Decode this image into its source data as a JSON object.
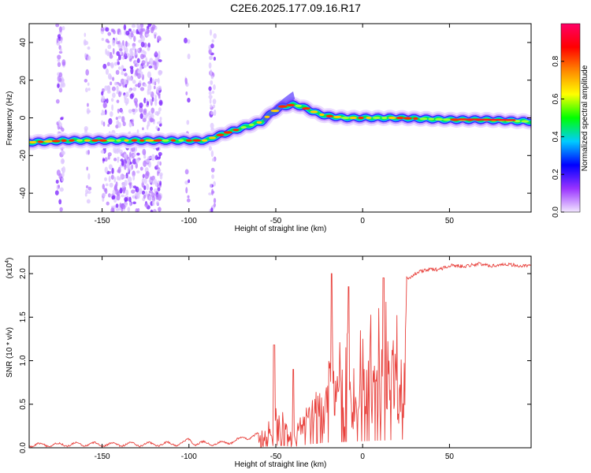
{
  "title": "C2E6.2025.177.09.16.R17",
  "chart_data": [
    {
      "type": "heatmap",
      "title": "",
      "xlabel": "Height of straight line (km)",
      "ylabel": "Frequency (Hz)",
      "xlim": [
        -192,
        97
      ],
      "ylim": [
        -50,
        50
      ],
      "x_ticks": [
        -150,
        -100,
        -50,
        0,
        50
      ],
      "x_tick_labels": [
        "-150",
        "-100",
        "-50",
        "0",
        "50"
      ],
      "y_ticks": [
        -40,
        -20,
        0,
        20,
        40
      ],
      "y_tick_labels": [
        "-40",
        "-20",
        "0",
        "20",
        "40"
      ],
      "ridge": {
        "x": [
          -192,
          -170,
          -150,
          -130,
          -115,
          -100,
          -90,
          -85,
          -75,
          -65,
          -58,
          -52,
          -46,
          -40,
          -35,
          -30,
          -25,
          -20,
          -10,
          0,
          20,
          50,
          70,
          97
        ],
        "y": [
          -13,
          -12,
          -12,
          -12,
          -12,
          -12,
          -12,
          -10,
          -7,
          -4,
          -2,
          3,
          6,
          7,
          6,
          4,
          2,
          1,
          0,
          0,
          0,
          -1,
          -1,
          -2
        ]
      },
      "colorbar": {
        "label": "Normalized spectral amplitude",
        "range": [
          0,
          1
        ],
        "ticks": [
          0,
          0.2,
          0.4,
          0.6,
          0.8
        ],
        "tick_labels": [
          "0.0",
          "0.2",
          "0.4",
          "0.6",
          "0.8"
        ],
        "colors": [
          "#f2e6ff",
          "#9933ff",
          "#0000ff",
          "#00ccff",
          "#00ff00",
          "#ffff00",
          "#ff8800",
          "#ff0000",
          "#ff0066"
        ]
      },
      "grid": false
    },
    {
      "type": "line",
      "title": "",
      "xlabel": "Height of straight line (km)",
      "ylabel": "SNR (10 * v/v)",
      "y_multiplier": "(x10",
      "y_multiplier_exp": "4",
      "y_multiplier_close": ")",
      "xlim": [
        -192,
        97
      ],
      "ylim": [
        0,
        2.2
      ],
      "x_ticks": [
        -150,
        -100,
        -50,
        0,
        50
      ],
      "x_tick_labels": [
        "-150",
        "-100",
        "-50",
        "0",
        "50"
      ],
      "y_ticks": [
        0,
        0.5,
        1.0,
        1.5,
        2.0
      ],
      "y_tick_labels": [
        "0.0",
        "0.5",
        "1.0",
        "1.5",
        "2.0"
      ],
      "color": "#e8413c",
      "grid": false,
      "envelope": {
        "x": [
          -192,
          -160,
          -140,
          -120,
          -100,
          -80,
          -60,
          -55,
          -50,
          -45,
          -42,
          -38,
          -35,
          -30,
          -25,
          -20,
          -15,
          -10,
          -5,
          0,
          10,
          20,
          25,
          30,
          40,
          50,
          60,
          70,
          80,
          90,
          97
        ],
        "y": [
          0.03,
          0.04,
          0.04,
          0.04,
          0.05,
          0.05,
          0.15,
          0.28,
          0.5,
          0.5,
          0.2,
          0.3,
          0.5,
          0.85,
          1.05,
          1.2,
          1.25,
          1.35,
          1.45,
          1.5,
          1.65,
          1.8,
          1.95,
          2.0,
          2.05,
          2.08,
          2.1,
          2.1,
          2.1,
          2.1,
          2.08
        ]
      },
      "peaks": [
        {
          "x": -51,
          "y": 1.18
        },
        {
          "x": -40,
          "y": 0.9
        },
        {
          "x": -18,
          "y": 2.0
        },
        {
          "x": -8,
          "y": 1.85
        },
        {
          "x": 12,
          "y": 1.95
        }
      ]
    }
  ]
}
